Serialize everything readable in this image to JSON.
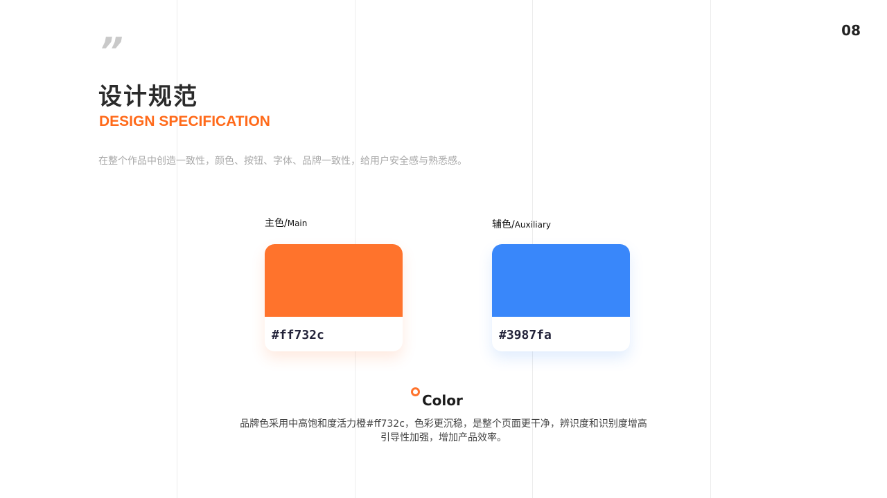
{
  "page_number": "08",
  "quote_mark": "”",
  "title": "设计规范",
  "subtitle": "DESIGN SPECIFICATION",
  "description": "在整个作品中创造一致性，颜色、按钮、字体、品牌一致性，给用户安全感与熟悉感。",
  "colors": [
    {
      "label_cn": "主色/",
      "label_en": "Main",
      "hex": "#ff732c",
      "color": "#ff732c",
      "shadow": "rgba(255,115,44,0.18)"
    },
    {
      "label_cn": "辅色/",
      "label_en": "Auxiliary",
      "hex": "#3987fa",
      "color": "#3987fa",
      "shadow": "rgba(57,135,250,0.18)"
    }
  ],
  "section_title": "Color",
  "body_line1": "品牌色采用中高饱和度活力橙#ff732c，色彩更沉稳，是整个页面更干净，辨识度和识别度增高",
  "body_line2": "引导性加强，增加产品效率。"
}
